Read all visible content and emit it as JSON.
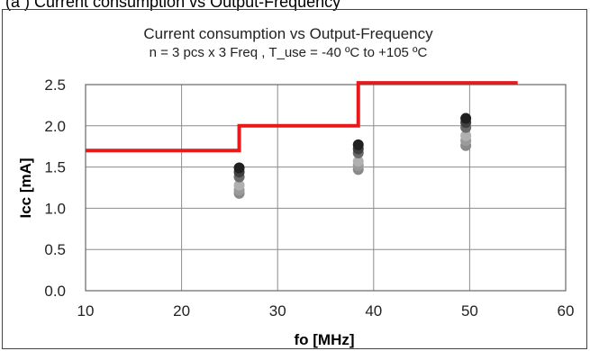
{
  "header_cutoff_text": "(a ) Current consumption vs Output-Frequency",
  "chart_data": {
    "type": "scatter",
    "title": "Current consumption vs Output-Frequency",
    "subtitle": "n = 3 pcs x 3 Freq , T_use = -40 ºC to +105 ºC",
    "xlabel": "fo  [MHz]",
    "ylabel": "Icc  [mA]",
    "xlim": [
      10,
      60
    ],
    "ylim": [
      0.0,
      2.5
    ],
    "xticks": [
      "10",
      "20",
      "30",
      "40",
      "50",
      "60"
    ],
    "yticks": [
      "0.0",
      "0.5",
      "1.0",
      "1.5",
      "2.0",
      "2.5"
    ],
    "grid": true,
    "limit_line": {
      "color": "#e8191a",
      "points": [
        [
          10,
          1.7
        ],
        [
          26,
          1.7
        ],
        [
          26,
          2.0
        ],
        [
          38.4,
          2.0
        ],
        [
          38.4,
          2.52
        ],
        [
          55,
          2.52
        ]
      ]
    },
    "points": [
      {
        "x": 26,
        "y": 1.18,
        "color": "#8a8a8a"
      },
      {
        "x": 26,
        "y": 1.22,
        "color": "#9a9a9a"
      },
      {
        "x": 26,
        "y": 1.28,
        "color": "#b0b0b0"
      },
      {
        "x": 26,
        "y": 1.38,
        "color": "#6a6a6a"
      },
      {
        "x": 26,
        "y": 1.44,
        "color": "#404040"
      },
      {
        "x": 26,
        "y": 1.49,
        "color": "#202020"
      },
      {
        "x": 38.4,
        "y": 1.47,
        "color": "#8a8a8a"
      },
      {
        "x": 38.4,
        "y": 1.52,
        "color": "#9a9a9a"
      },
      {
        "x": 38.4,
        "y": 1.57,
        "color": "#b0b0b0"
      },
      {
        "x": 38.4,
        "y": 1.67,
        "color": "#6a6a6a"
      },
      {
        "x": 38.4,
        "y": 1.72,
        "color": "#404040"
      },
      {
        "x": 38.4,
        "y": 1.77,
        "color": "#202020"
      },
      {
        "x": 49.6,
        "y": 1.76,
        "color": "#8a8a8a"
      },
      {
        "x": 49.6,
        "y": 1.82,
        "color": "#9a9a9a"
      },
      {
        "x": 49.6,
        "y": 1.88,
        "color": "#b0b0b0"
      },
      {
        "x": 49.6,
        "y": 1.98,
        "color": "#6a6a6a"
      },
      {
        "x": 49.6,
        "y": 2.04,
        "color": "#404040"
      },
      {
        "x": 49.6,
        "y": 2.09,
        "color": "#202020"
      }
    ]
  }
}
